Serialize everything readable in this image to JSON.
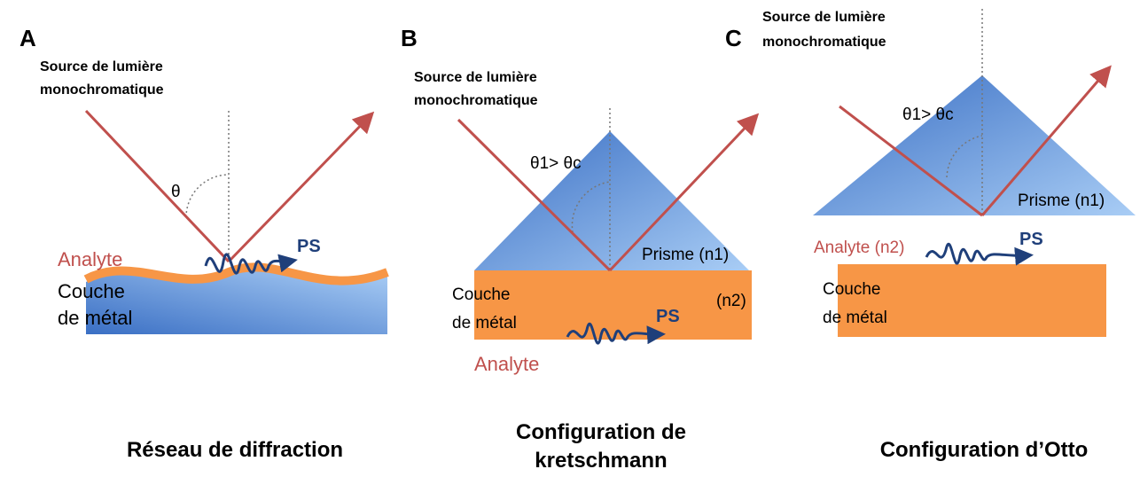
{
  "panels": [
    {
      "letter": "A",
      "source": [
        "Source de lumière",
        "monochromatique"
      ],
      "angle": "θ",
      "analyte": "Analyte",
      "metal": [
        "Couche",
        "de métal"
      ],
      "ps": "PS",
      "caption": [
        "Réseau de diffraction"
      ]
    },
    {
      "letter": "B",
      "source": [
        "Source de lumière",
        "monochromatique"
      ],
      "angle": "θ1> θc",
      "prism": "Prisme (n1)",
      "metal": [
        "Couche",
        "de métal"
      ],
      "n2": "(n2)",
      "ps": "PS",
      "analyte": "Analyte",
      "caption": [
        "Configuration de",
        "kretschmann"
      ]
    },
    {
      "letter": "C",
      "source": [
        "Source de lumière",
        "monochromatique"
      ],
      "angle": "θ1> θc",
      "prism": "Prisme (n1)",
      "analyte": "Analyte (n2)",
      "ps": "PS",
      "metal": [
        "Couche",
        "de métal"
      ],
      "caption": [
        "Configuration d’Otto"
      ]
    }
  ]
}
